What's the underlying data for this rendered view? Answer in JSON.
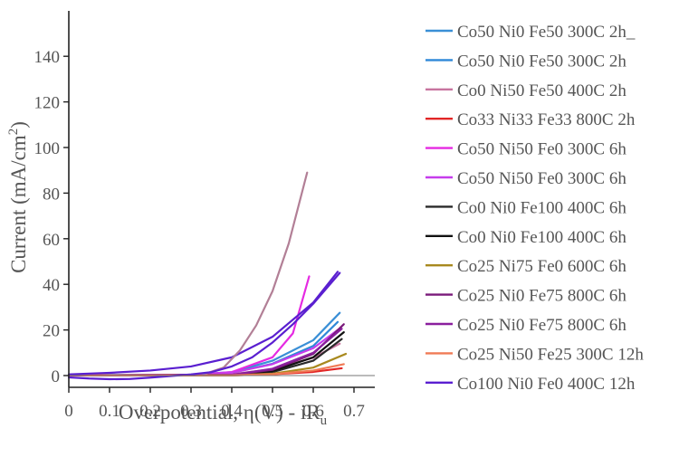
{
  "chart_data": {
    "type": "line",
    "xlabel": "Overpotential, η(V) - iR",
    "xlabel_sub": "u",
    "ylabel": "Current (mA/cm",
    "ylabel_sup": "2",
    "ylabel_end": ")",
    "xlim": [
      0,
      0.72
    ],
    "ylim": [
      -5,
      160
    ],
    "x_ticks": [
      0,
      0.1,
      0.2,
      0.3,
      0.4,
      0.5,
      0.6,
      0.7
    ],
    "x_tick_labels": [
      "0",
      "0.1",
      "0.2",
      "0.3",
      "0.4",
      "0.5",
      "0.6",
      "0.7"
    ],
    "y_ticks": [
      0,
      20,
      40,
      60,
      80,
      100,
      120,
      140
    ],
    "y_tick_labels": [
      "0",
      "20",
      "40",
      "60",
      "80",
      "100",
      "120",
      "140"
    ],
    "grid": false,
    "zero_line": true,
    "legend_position": "right",
    "series": [
      {
        "name": "Co50 Ni0 Fe50 300C 2h_",
        "color": "#3a8fd6",
        "points": [
          [
            0,
            0.2
          ],
          [
            0.3,
            0.4
          ],
          [
            0.4,
            1.5
          ],
          [
            0.5,
            6.5
          ],
          [
            0.6,
            15.5
          ],
          [
            0.665,
            27.5
          ]
        ]
      },
      {
        "name": "Co50 Ni0 Fe50 300C 2h",
        "color": "#2f88d8",
        "points": [
          [
            0,
            0.2
          ],
          [
            0.3,
            0.3
          ],
          [
            0.4,
            1.2
          ],
          [
            0.5,
            5.2
          ],
          [
            0.6,
            13.0
          ],
          [
            0.66,
            23.5
          ]
        ]
      },
      {
        "name": "Co0 Ni50 Fe50 400C 2h",
        "color": "#c8749f",
        "points": [
          [
            0,
            0.1
          ],
          [
            0.3,
            0.2
          ],
          [
            0.4,
            0.6
          ],
          [
            0.5,
            2.8
          ],
          [
            0.6,
            7.8
          ],
          [
            0.665,
            14.0
          ]
        ]
      },
      {
        "name": "Co33 Ni33 Fe33 800C 2h",
        "color": "#e22626",
        "points": [
          [
            0,
            0.1
          ],
          [
            0.4,
            0.1
          ],
          [
            0.5,
            0.6
          ],
          [
            0.6,
            1.6
          ],
          [
            0.67,
            3.2
          ]
        ]
      },
      {
        "name": "Co50 Ni50 Fe0 300C 6h",
        "color": "#e52ae2",
        "points": [
          [
            0,
            0.1
          ],
          [
            0.3,
            0.3
          ],
          [
            0.4,
            1.5
          ],
          [
            0.5,
            8.0
          ],
          [
            0.55,
            18.5
          ],
          [
            0.59,
            43.5
          ]
        ]
      },
      {
        "name": "Co50 Ni50 Fe0 300C 6h",
        "color": "#c63cec",
        "points": [
          [
            0,
            0.1
          ],
          [
            0.3,
            0.3
          ],
          [
            0.4,
            1.2
          ],
          [
            0.5,
            5.0
          ],
          [
            0.6,
            12.0
          ],
          [
            0.66,
            20.0
          ]
        ]
      },
      {
        "name": "Co0 Ni0 Fe100 400C 6h",
        "color": "#2a2a2a",
        "points": [
          [
            0,
            0.1
          ],
          [
            0.4,
            0.2
          ],
          [
            0.5,
            1.5
          ],
          [
            0.6,
            6.5
          ],
          [
            0.67,
            16.0
          ]
        ]
      },
      {
        "name": "Co0 Ni0 Fe100 400C 6h",
        "color": "#111111",
        "points": [
          [
            0,
            0.1
          ],
          [
            0.4,
            0.3
          ],
          [
            0.5,
            2.0
          ],
          [
            0.6,
            8.0
          ],
          [
            0.675,
            19.0
          ]
        ]
      },
      {
        "name": "Co25 Ni75 Fe0 600C 6h",
        "color": "#a8891e",
        "points": [
          [
            0,
            0.1
          ],
          [
            0.4,
            0.1
          ],
          [
            0.5,
            0.8
          ],
          [
            0.6,
            3.5
          ],
          [
            0.68,
            9.5
          ]
        ]
      },
      {
        "name": "Co25 Ni0 Fe75 800C 6h",
        "color": "#7a1a7a",
        "points": [
          [
            0,
            0.1
          ],
          [
            0.4,
            0.3
          ],
          [
            0.5,
            2.5
          ],
          [
            0.6,
            9.5
          ],
          [
            0.675,
            22.5
          ]
        ]
      },
      {
        "name": "Co25 Ni0 Fe75 800C 6h",
        "color": "#8a1f9e",
        "points": [
          [
            0,
            0.1
          ],
          [
            0.4,
            0.3
          ],
          [
            0.5,
            3.0
          ],
          [
            0.6,
            10.0
          ],
          [
            0.67,
            20.5
          ]
        ]
      },
      {
        "name": "Co25 Ni50 Fe25 300C 12h",
        "color": "#f07a55",
        "points": [
          [
            0,
            0.1
          ],
          [
            0.4,
            0.1
          ],
          [
            0.5,
            0.6
          ],
          [
            0.6,
            2.2
          ],
          [
            0.675,
            5.0
          ]
        ]
      },
      {
        "name": "Co100 Ni0 Fe0 400C 12h",
        "color": "#5a1fd0",
        "points": [
          [
            0,
            0.5
          ],
          [
            0.1,
            1.2
          ],
          [
            0.2,
            2.2
          ],
          [
            0.3,
            4.0
          ],
          [
            0.4,
            8.0
          ],
          [
            0.5,
            17.0
          ],
          [
            0.6,
            32.0
          ],
          [
            0.66,
            45.5
          ]
        ]
      }
    ],
    "extra_curves": [
      {
        "color": "#b27f96",
        "points": [
          [
            0.33,
            0.5
          ],
          [
            0.38,
            3.5
          ],
          [
            0.42,
            11.0
          ],
          [
            0.46,
            22.0
          ],
          [
            0.5,
            37.0
          ],
          [
            0.54,
            58.0
          ],
          [
            0.585,
            89.0
          ]
        ]
      },
      {
        "color": "#5a1fd0",
        "points": [
          [
            0,
            -0.8
          ],
          [
            0.05,
            -1.3
          ],
          [
            0.1,
            -1.6
          ],
          [
            0.15,
            -1.5
          ],
          [
            0.2,
            -0.9
          ],
          [
            0.25,
            -0.2
          ],
          [
            0.3,
            0.5
          ],
          [
            0.35,
            1.5
          ],
          [
            0.4,
            4.0
          ],
          [
            0.45,
            8.0
          ],
          [
            0.5,
            14.5
          ],
          [
            0.55,
            22.5
          ],
          [
            0.6,
            31.5
          ],
          [
            0.665,
            45.0
          ]
        ]
      }
    ]
  }
}
